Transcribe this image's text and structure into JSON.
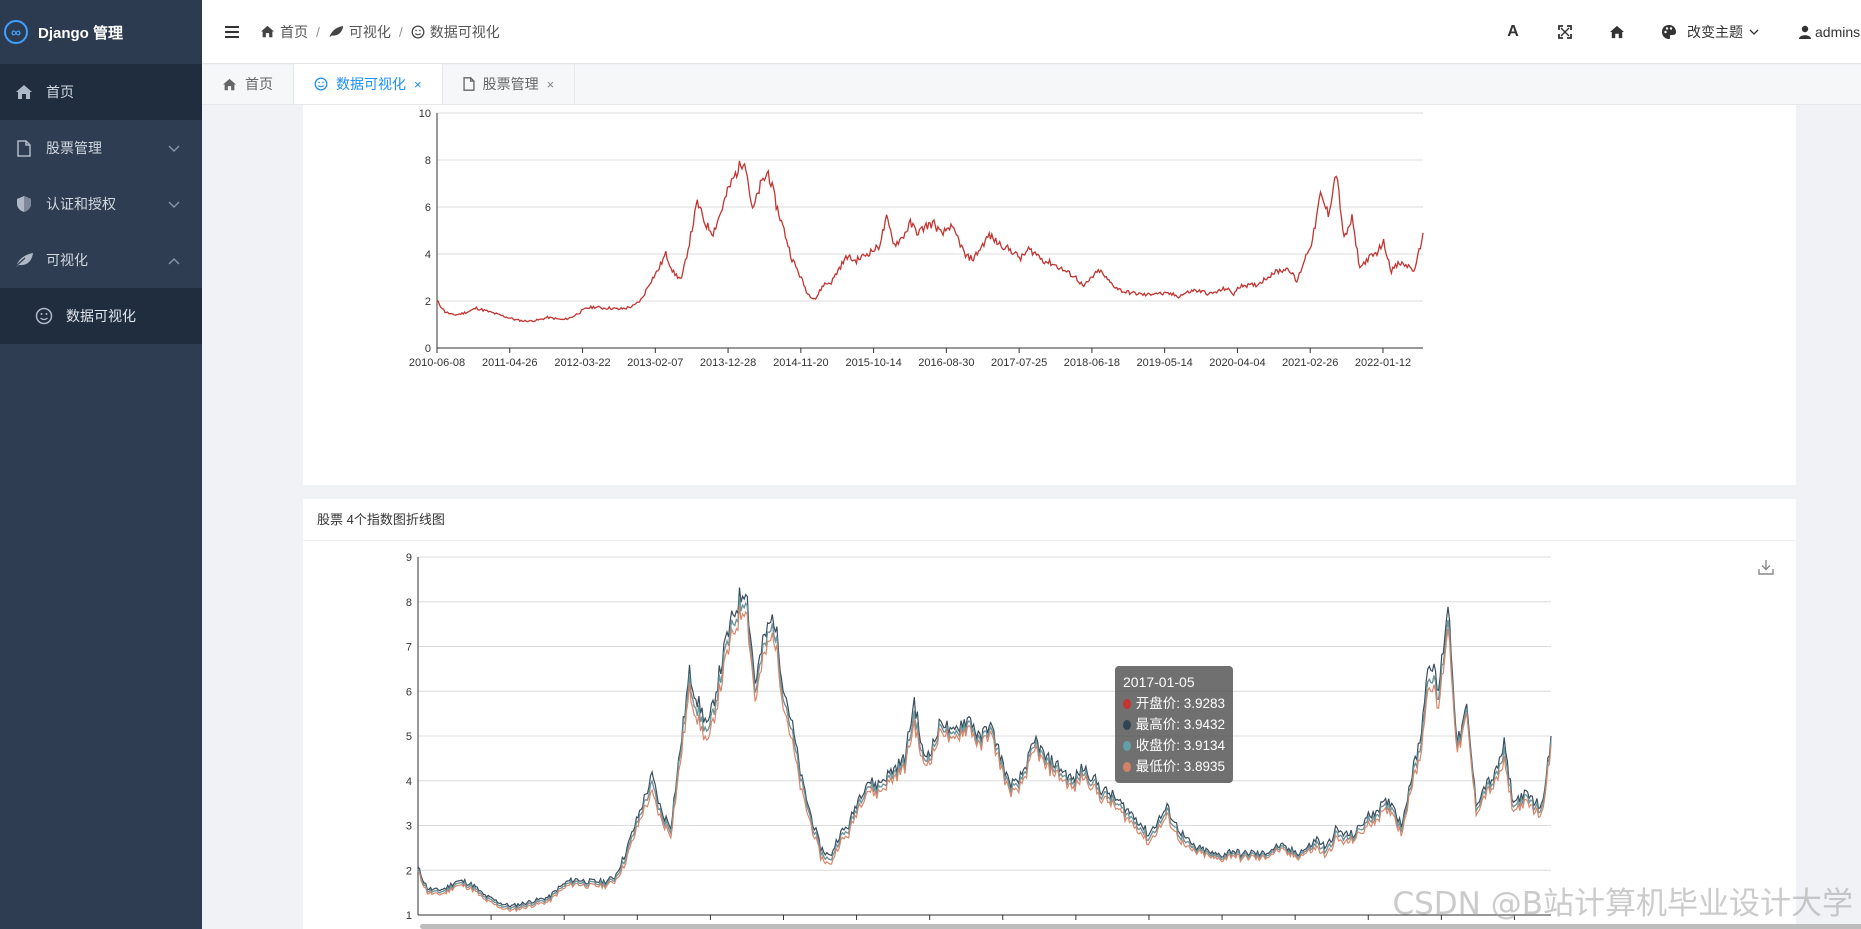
{
  "app": {
    "title": "Django 管理"
  },
  "sidebar": {
    "items": [
      {
        "label": "首页",
        "icon": "home-icon"
      },
      {
        "label": "股票管理",
        "icon": "file-icon"
      },
      {
        "label": "认证和授权",
        "icon": "shield-icon"
      },
      {
        "label": "可视化",
        "icon": "leaf-icon"
      }
    ],
    "subitems": [
      {
        "label": "数据可视化",
        "icon": "smile-icon"
      }
    ]
  },
  "header": {
    "breadcrumb": [
      {
        "label": "首页",
        "icon": "home-icon"
      },
      {
        "label": "可视化",
        "icon": "leaf-icon"
      },
      {
        "label": "数据可视化",
        "icon": "smile-icon"
      }
    ],
    "separator": "/",
    "font_label": "A",
    "theme_label": "改变主题",
    "user_label": "admins"
  },
  "tabs": [
    {
      "label": "首页",
      "closable": false
    },
    {
      "label": "数据可视化",
      "closable": true,
      "active": true
    },
    {
      "label": "股票管理",
      "closable": true
    }
  ],
  "tab_close_glyph": "×",
  "cards": {
    "card2_title": "股票 4个指数图折线图"
  },
  "tooltip": {
    "date": "2017-01-05",
    "rows": [
      {
        "label": "开盘价: 3.9283",
        "color": "#c23531"
      },
      {
        "label": "最高价: 3.9432",
        "color": "#2f4554"
      },
      {
        "label": "收盘价: 3.9134",
        "color": "#61a0a8"
      },
      {
        "label": "最低价: 3.8935",
        "color": "#d48265"
      }
    ]
  },
  "watermark": "CSDN @B站计算机毕业设计大学",
  "chart_data": [
    {
      "type": "line",
      "title": "",
      "xlabel": "",
      "ylabel": "",
      "x_ticks": [
        "2010-06-08",
        "2011-04-26",
        "2012-03-22",
        "2013-02-07",
        "2013-12-28",
        "2014-11-20",
        "2015-10-14",
        "2016-08-30",
        "2017-07-25",
        "2018-06-18",
        "2019-05-14",
        "2020-04-04",
        "2021-02-26",
        "2022-01-12"
      ],
      "ylim": [
        0,
        10
      ],
      "y_ticks": [
        0,
        2,
        4,
        6,
        8,
        10
      ],
      "grid": true,
      "color": "#c23531",
      "series": [
        {
          "values": [
            2.0,
            1.55,
            1.4,
            1.45,
            1.55,
            1.7,
            1.6,
            1.5,
            1.4,
            1.3,
            1.2,
            1.15,
            1.15,
            1.2,
            1.3,
            1.25,
            1.2,
            1.3,
            1.5,
            1.7,
            1.75,
            1.7,
            1.7,
            1.65,
            1.7,
            1.8,
            2.1,
            2.8,
            3.3,
            4.0,
            3.2,
            2.9,
            4.5,
            6.2,
            5.3,
            4.9,
            5.8,
            6.8,
            7.5,
            8.1,
            5.8,
            6.9,
            7.5,
            6.1,
            5.0,
            3.8,
            3.1,
            2.3,
            2.1,
            2.7,
            2.8,
            3.4,
            3.9,
            3.7,
            3.9,
            4.1,
            4.3,
            5.5,
            4.4,
            4.7,
            5.3,
            4.9,
            5.2,
            5.3,
            4.8,
            5.2,
            4.7,
            3.9,
            3.8,
            4.3,
            4.8,
            4.5,
            4.3,
            4.1,
            3.8,
            4.2,
            4.0,
            3.7,
            3.6,
            3.4,
            3.2,
            3.0,
            2.6,
            3.0,
            3.3,
            2.9,
            2.6,
            2.4,
            2.35,
            2.3,
            2.25,
            2.35,
            2.3,
            2.3,
            2.2,
            2.35,
            2.45,
            2.4,
            2.3,
            2.4,
            2.55,
            2.3,
            2.7,
            2.65,
            2.7,
            2.95,
            3.2,
            3.3,
            3.4,
            2.8,
            3.8,
            4.6,
            6.5,
            5.7,
            7.5,
            4.6,
            5.5,
            3.4,
            3.8,
            4.0,
            4.5,
            3.3,
            3.6,
            3.5,
            3.3,
            4.9
          ]
        }
      ]
    },
    {
      "type": "line",
      "title": "",
      "legend": [
        "开盘价",
        "最高价",
        "收盘价",
        "最低价"
      ],
      "legend_position": "top-center",
      "ylim": [
        1,
        9
      ],
      "y_ticks": [
        1,
        2,
        3,
        4,
        5,
        6,
        7,
        8,
        9
      ],
      "grid": true,
      "series": [
        {
          "name": "开盘价",
          "color": "#c23531",
          "values": [
            2.0,
            1.55,
            1.5,
            1.55,
            1.7,
            1.7,
            1.6,
            1.4,
            1.3,
            1.2,
            1.15,
            1.2,
            1.25,
            1.3,
            1.35,
            1.55,
            1.7,
            1.75,
            1.7,
            1.7,
            1.7,
            1.8,
            2.2,
            2.8,
            3.4,
            3.9,
            3.2,
            2.9,
            4.6,
            6.2,
            5.5,
            5.0,
            6.0,
            7.0,
            7.7,
            8.2,
            6.0,
            7.0,
            7.5,
            6.0,
            5.0,
            3.9,
            3.1,
            2.4,
            2.2,
            2.7,
            2.9,
            3.5,
            3.9,
            3.8,
            4.0,
            4.2,
            4.4,
            5.5,
            4.4,
            4.7,
            5.3,
            4.9,
            5.2,
            5.3,
            4.8,
            5.2,
            4.6,
            3.9,
            3.8,
            4.3,
            4.8,
            4.4,
            4.3,
            4.1,
            3.9,
            4.2,
            4.0,
            3.7,
            3.6,
            3.4,
            3.2,
            3.0,
            2.7,
            3.0,
            3.3,
            2.9,
            2.6,
            2.45,
            2.4,
            2.3,
            2.3,
            2.4,
            2.3,
            2.35,
            2.3,
            2.4,
            2.5,
            2.4,
            2.35,
            2.45,
            2.6,
            2.4,
            2.8,
            2.7,
            2.75,
            3.0,
            3.2,
            3.35,
            3.45,
            2.9,
            3.9,
            4.7,
            6.5,
            5.8,
            7.7,
            4.7,
            5.5,
            3.4,
            3.8,
            4.0,
            4.6,
            3.4,
            3.6,
            3.5,
            3.3,
            4.9
          ]
        },
        {
          "name": "最高价",
          "color": "#2f4554",
          "values": [
            2.05,
            1.6,
            1.55,
            1.6,
            1.75,
            1.75,
            1.65,
            1.45,
            1.35,
            1.25,
            1.2,
            1.25,
            1.3,
            1.35,
            1.4,
            1.6,
            1.75,
            1.8,
            1.75,
            1.75,
            1.75,
            1.85,
            2.3,
            2.9,
            3.5,
            4.1,
            3.3,
            3.0,
            4.7,
            6.4,
            5.7,
            5.2,
            6.2,
            7.2,
            7.9,
            8.4,
            6.2,
            7.2,
            7.7,
            6.2,
            5.2,
            4.0,
            3.2,
            2.5,
            2.3,
            2.8,
            3.0,
            3.6,
            4.0,
            3.9,
            4.1,
            4.3,
            4.5,
            5.8,
            4.5,
            4.8,
            5.4,
            5.0,
            5.3,
            5.4,
            4.9,
            5.3,
            4.7,
            4.0,
            3.9,
            4.4,
            4.9,
            4.5,
            4.4,
            4.2,
            4.0,
            4.3,
            4.1,
            3.8,
            3.7,
            3.5,
            3.3,
            3.1,
            2.8,
            3.1,
            3.4,
            3.0,
            2.7,
            2.5,
            2.45,
            2.35,
            2.35,
            2.45,
            2.35,
            2.4,
            2.35,
            2.45,
            2.55,
            2.45,
            2.4,
            2.5,
            2.7,
            2.5,
            2.9,
            2.8,
            2.8,
            3.1,
            3.3,
            3.45,
            3.55,
            3.0,
            4.0,
            4.9,
            6.8,
            6.0,
            8.0,
            4.8,
            5.6,
            3.5,
            3.9,
            4.1,
            4.8,
            3.5,
            3.7,
            3.6,
            3.4,
            5.0
          ]
        },
        {
          "name": "收盘价",
          "color": "#61a0a8",
          "values": [
            2.0,
            1.55,
            1.5,
            1.55,
            1.7,
            1.7,
            1.6,
            1.4,
            1.3,
            1.2,
            1.15,
            1.2,
            1.25,
            1.3,
            1.35,
            1.55,
            1.7,
            1.75,
            1.7,
            1.7,
            1.7,
            1.8,
            2.2,
            2.8,
            3.4,
            3.9,
            3.2,
            2.9,
            4.6,
            6.2,
            5.5,
            5.0,
            6.0,
            7.0,
            7.7,
            8.2,
            6.0,
            7.0,
            7.5,
            6.0,
            5.0,
            3.9,
            3.1,
            2.4,
            2.2,
            2.7,
            2.9,
            3.5,
            3.9,
            3.8,
            4.0,
            4.2,
            4.4,
            5.5,
            4.4,
            4.7,
            5.3,
            4.9,
            5.2,
            5.3,
            4.8,
            5.2,
            4.6,
            3.9,
            3.8,
            4.3,
            4.8,
            4.4,
            4.3,
            4.1,
            3.9,
            4.2,
            4.0,
            3.7,
            3.6,
            3.4,
            3.2,
            3.0,
            2.7,
            3.0,
            3.3,
            2.9,
            2.6,
            2.45,
            2.4,
            2.3,
            2.3,
            2.4,
            2.3,
            2.35,
            2.3,
            2.4,
            2.5,
            2.4,
            2.35,
            2.45,
            2.6,
            2.4,
            2.8,
            2.7,
            2.75,
            3.0,
            3.2,
            3.35,
            3.45,
            2.9,
            3.9,
            4.7,
            6.5,
            5.8,
            7.7,
            4.7,
            5.5,
            3.4,
            3.8,
            4.0,
            4.6,
            3.4,
            3.6,
            3.5,
            3.3,
            4.9
          ]
        },
        {
          "name": "最低价",
          "color": "#d48265",
          "values": [
            1.95,
            1.5,
            1.45,
            1.5,
            1.65,
            1.65,
            1.55,
            1.35,
            1.25,
            1.15,
            1.1,
            1.15,
            1.2,
            1.25,
            1.3,
            1.5,
            1.65,
            1.7,
            1.65,
            1.65,
            1.65,
            1.75,
            2.1,
            2.7,
            3.3,
            3.7,
            3.1,
            2.8,
            4.4,
            6.0,
            5.3,
            4.8,
            5.8,
            6.8,
            7.5,
            8.0,
            5.8,
            6.8,
            7.3,
            5.8,
            4.8,
            3.7,
            3.0,
            2.3,
            2.1,
            2.6,
            2.8,
            3.4,
            3.8,
            3.7,
            3.9,
            4.1,
            4.3,
            5.3,
            4.3,
            4.6,
            5.2,
            4.8,
            5.1,
            5.2,
            4.7,
            5.1,
            4.5,
            3.8,
            3.7,
            4.2,
            4.7,
            4.3,
            4.2,
            4.0,
            3.8,
            4.1,
            3.9,
            3.6,
            3.5,
            3.3,
            3.1,
            2.9,
            2.6,
            2.9,
            3.2,
            2.8,
            2.5,
            2.4,
            2.35,
            2.25,
            2.25,
            2.35,
            2.25,
            2.3,
            2.25,
            2.35,
            2.45,
            2.35,
            2.3,
            2.4,
            2.5,
            2.3,
            2.7,
            2.6,
            2.7,
            2.9,
            3.1,
            3.25,
            3.35,
            2.8,
            3.8,
            4.5,
            6.3,
            5.6,
            7.5,
            4.6,
            5.4,
            3.3,
            3.7,
            3.9,
            4.4,
            3.3,
            3.5,
            3.4,
            3.2,
            4.8
          ]
        }
      ]
    }
  ]
}
